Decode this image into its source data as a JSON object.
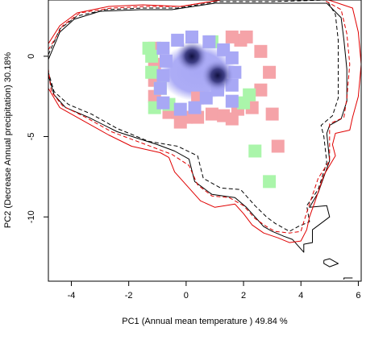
{
  "chart_data": {
    "type": "scatter",
    "title": "",
    "xlabel": "PC1 (Annual mean temperature ) 49.84 %",
    "ylabel": "PC2 (Decrease Annual precipitation) 30.18%",
    "xlim": [
      -4.8,
      6.1
    ],
    "ylim": [
      -14.0,
      3.5
    ],
    "xticks": [
      -4,
      -2,
      0,
      2,
      4,
      6
    ],
    "yticks": [
      -10,
      -5,
      0
    ],
    "grid": false,
    "legend": "none",
    "colors": {
      "envelope_black": "#000000",
      "envelope_red": "#e00000",
      "green_cells": "#aaf5aa",
      "pink_cells": "#f5a3a8",
      "blue_cells": "#a8a8f5",
      "density_core": "#101040"
    },
    "series": [
      {
        "style": "black-solid",
        "points": [
          [
            -4.8,
            -0.2
          ],
          [
            -4.4,
            1.5
          ],
          [
            -3.9,
            2.3
          ],
          [
            -3.0,
            2.8
          ],
          [
            -1.6,
            2.9
          ],
          [
            -0.5,
            2.9
          ],
          [
            1.0,
            3.3
          ],
          [
            3.1,
            3.3
          ],
          [
            4.9,
            3.3
          ],
          [
            5.4,
            2.4
          ],
          [
            5.5,
            1.0
          ],
          [
            5.6,
            -0.8
          ],
          [
            5.6,
            -2.8
          ],
          [
            5.4,
            -3.9
          ],
          [
            5.0,
            -4.3
          ],
          [
            4.9,
            -4.8
          ],
          [
            5.0,
            -6.5
          ],
          [
            4.6,
            -8.5
          ],
          [
            4.3,
            -9.4
          ],
          [
            4.9,
            -9.3
          ],
          [
            5.0,
            -10.0
          ],
          [
            4.7,
            -10.4
          ],
          [
            4.4,
            -10.8
          ],
          [
            4.4,
            -11.6
          ],
          [
            4.1,
            -11.7
          ],
          [
            4.1,
            -12.2
          ],
          [
            3.7,
            -11.4
          ],
          [
            3.4,
            -11.2
          ],
          [
            3.0,
            -10.9
          ],
          [
            2.7,
            -10.6
          ],
          [
            2.5,
            -10.2
          ],
          [
            2.1,
            -9.4
          ],
          [
            1.7,
            -8.8
          ],
          [
            0.9,
            -8.6
          ],
          [
            0.3,
            -7.8
          ],
          [
            0.1,
            -6.4
          ],
          [
            -0.4,
            -5.9
          ],
          [
            -1.0,
            -5.5
          ],
          [
            -2.4,
            -4.7
          ],
          [
            -3.4,
            -3.8
          ],
          [
            -4.2,
            -3.2
          ],
          [
            -4.6,
            -2.4
          ],
          [
            -4.8,
            -1.2
          ],
          [
            -4.8,
            -0.2
          ]
        ]
      },
      {
        "style": "black-dashed",
        "points": [
          [
            -4.8,
            0.1
          ],
          [
            -4.4,
            1.7
          ],
          [
            -3.8,
            2.5
          ],
          [
            -2.8,
            2.9
          ],
          [
            -1.5,
            3.0
          ],
          [
            -0.3,
            3.0
          ],
          [
            1.1,
            3.4
          ],
          [
            3.0,
            3.4
          ],
          [
            4.9,
            3.5
          ],
          [
            5.2,
            2.6
          ],
          [
            5.3,
            1.0
          ],
          [
            5.3,
            -0.8
          ],
          [
            5.3,
            -2.6
          ],
          [
            5.1,
            -3.7
          ],
          [
            4.7,
            -4.3
          ],
          [
            4.8,
            -5.0
          ],
          [
            4.9,
            -6.6
          ],
          [
            4.6,
            -8.3
          ],
          [
            4.2,
            -9.3
          ],
          [
            4.3,
            -10.3
          ],
          [
            3.9,
            -10.6
          ],
          [
            3.6,
            -10.9
          ],
          [
            3.1,
            -10.4
          ],
          [
            2.8,
            -10.0
          ],
          [
            2.4,
            -9.3
          ],
          [
            1.9,
            -8.3
          ],
          [
            1.2,
            -8.2
          ],
          [
            0.6,
            -7.6
          ],
          [
            0.4,
            -6.2
          ],
          [
            -0.3,
            -5.6
          ],
          [
            -1.3,
            -5.3
          ],
          [
            -2.4,
            -4.5
          ],
          [
            -3.3,
            -3.6
          ],
          [
            -4.1,
            -3.0
          ],
          [
            -4.6,
            -2.2
          ],
          [
            -4.8,
            -1.0
          ],
          [
            -4.8,
            0.1
          ]
        ]
      },
      {
        "style": "red-solid",
        "points": [
          [
            -4.9,
            0.5
          ],
          [
            -4.4,
            1.9
          ],
          [
            -3.8,
            2.7
          ],
          [
            -2.7,
            3.1
          ],
          [
            -1.5,
            3.2
          ],
          [
            -0.2,
            3.1
          ],
          [
            1.2,
            3.5
          ],
          [
            3.0,
            3.5
          ],
          [
            4.8,
            3.6
          ],
          [
            5.8,
            3.0
          ],
          [
            6.0,
            1.5
          ],
          [
            6.1,
            -0.5
          ],
          [
            6.0,
            -2.5
          ],
          [
            5.8,
            -3.8
          ],
          [
            5.7,
            -4.6
          ],
          [
            5.2,
            -4.8
          ],
          [
            5.1,
            -5.5
          ],
          [
            5.2,
            -6.2
          ],
          [
            4.8,
            -7.4
          ],
          [
            4.5,
            -9.0
          ],
          [
            4.3,
            -10.0
          ],
          [
            4.2,
            -10.8
          ],
          [
            4.0,
            -11.5
          ],
          [
            3.6,
            -11.6
          ],
          [
            3.2,
            -11.3
          ],
          [
            2.7,
            -11.0
          ],
          [
            2.3,
            -10.5
          ],
          [
            2.0,
            -9.8
          ],
          [
            1.7,
            -9.2
          ],
          [
            1.0,
            -9.4
          ],
          [
            0.5,
            -9.0
          ],
          [
            0.1,
            -8.2
          ],
          [
            -0.4,
            -7.2
          ],
          [
            -0.6,
            -6.3
          ],
          [
            -0.9,
            -6.0
          ],
          [
            -1.9,
            -5.6
          ],
          [
            -2.7,
            -4.9
          ],
          [
            -3.6,
            -4.0
          ],
          [
            -4.4,
            -3.2
          ],
          [
            -4.8,
            -2.0
          ],
          [
            -4.9,
            0.5
          ]
        ]
      },
      {
        "style": "red-dashed",
        "points": [
          [
            -4.8,
            0.4
          ],
          [
            -4.3,
            1.9
          ],
          [
            -3.7,
            2.7
          ],
          [
            -2.6,
            3.0
          ],
          [
            -1.4,
            3.1
          ],
          [
            -0.2,
            3.1
          ],
          [
            1.2,
            3.5
          ],
          [
            3.1,
            3.5
          ],
          [
            4.8,
            3.5
          ],
          [
            5.4,
            2.9
          ],
          [
            5.6,
            1.4
          ],
          [
            5.7,
            -0.5
          ],
          [
            5.6,
            -2.6
          ],
          [
            5.5,
            -3.8
          ],
          [
            5.0,
            -4.2
          ],
          [
            5.0,
            -5.0
          ],
          [
            5.0,
            -6.5
          ],
          [
            4.6,
            -7.6
          ],
          [
            4.3,
            -9.2
          ],
          [
            4.1,
            -10.3
          ],
          [
            4.0,
            -10.9
          ],
          [
            3.6,
            -11.0
          ],
          [
            3.1,
            -10.9
          ],
          [
            2.8,
            -10.6
          ],
          [
            2.4,
            -10.1
          ],
          [
            2.0,
            -9.3
          ],
          [
            1.5,
            -8.8
          ],
          [
            0.9,
            -8.7
          ],
          [
            0.4,
            -8.0
          ],
          [
            0.1,
            -6.8
          ],
          [
            -0.5,
            -6.1
          ],
          [
            -1.4,
            -5.5
          ],
          [
            -2.6,
            -4.7
          ],
          [
            -3.5,
            -3.8
          ],
          [
            -4.3,
            -3.1
          ],
          [
            -4.7,
            -2.2
          ],
          [
            -4.8,
            -0.8
          ],
          [
            -4.8,
            0.4
          ]
        ]
      },
      {
        "style": "black-solid-small",
        "points": [
          [
            4.8,
            -12.7
          ],
          [
            5.0,
            -12.6
          ],
          [
            5.3,
            -12.9
          ],
          [
            5.0,
            -13.1
          ],
          [
            4.8,
            -12.9
          ],
          [
            4.8,
            -12.7
          ]
        ]
      },
      {
        "style": "black-solid-small",
        "points": [
          [
            5.5,
            -13.9
          ],
          [
            5.5,
            -13.8
          ],
          [
            5.8,
            -13.8
          ]
        ]
      }
    ],
    "cells": {
      "pink": [
        [
          -1.1,
          0.5
        ],
        [
          -1.1,
          -0.5
        ],
        [
          -1.1,
          -1.5
        ],
        [
          -1.1,
          -2.5
        ],
        [
          -0.6,
          -3.5
        ],
        [
          -0.3,
          -3.5
        ],
        [
          0.0,
          -3.8
        ],
        [
          0.4,
          -3.8
        ],
        [
          0.9,
          -3.6
        ],
        [
          1.3,
          -3.7
        ],
        [
          1.8,
          -3.3
        ],
        [
          2.3,
          -3.2
        ],
        [
          2.6,
          -2.1
        ],
        [
          2.9,
          -1.0
        ],
        [
          2.6,
          0.3
        ],
        [
          1.9,
          1.0
        ],
        [
          1.6,
          1.2
        ],
        [
          2.1,
          1.2
        ],
        [
          0.4,
          -2.6
        ],
        [
          3.0,
          -3.6
        ],
        [
          3.2,
          -5.6
        ],
        [
          1.6,
          -3.9
        ],
        [
          -0.2,
          -4.1
        ]
      ],
      "green": [
        [
          -1.3,
          0.5
        ],
        [
          -1.2,
          0.0
        ],
        [
          -1.2,
          -1.0
        ],
        [
          -0.9,
          -2.0
        ],
        [
          -1.1,
          -3.2
        ],
        [
          -0.6,
          -3.0
        ],
        [
          0.9,
          0.9
        ],
        [
          2.2,
          -2.4
        ],
        [
          2.0,
          -2.9
        ],
        [
          2.4,
          -5.9
        ],
        [
          2.9,
          -7.8
        ]
      ],
      "blue": [
        [
          -0.8,
          0.5
        ],
        [
          -0.7,
          -0.3
        ],
        [
          -0.3,
          1.0
        ],
        [
          0.2,
          1.2
        ],
        [
          0.8,
          0.9
        ],
        [
          1.3,
          0.4
        ],
        [
          1.6,
          -0.1
        ],
        [
          1.7,
          -1.0
        ],
        [
          1.6,
          -1.8
        ],
        [
          1.1,
          -2.1
        ],
        [
          0.7,
          -2.6
        ],
        [
          0.3,
          -3.2
        ],
        [
          -0.2,
          -3.3
        ],
        [
          -0.8,
          -2.9
        ],
        [
          -0.9,
          -2.0
        ],
        [
          -0.8,
          -1.2
        ],
        [
          1.6,
          -2.8
        ]
      ],
      "density_peaks": [
        [
          0.2,
          0.0
        ],
        [
          1.1,
          -1.2
        ]
      ]
    }
  }
}
